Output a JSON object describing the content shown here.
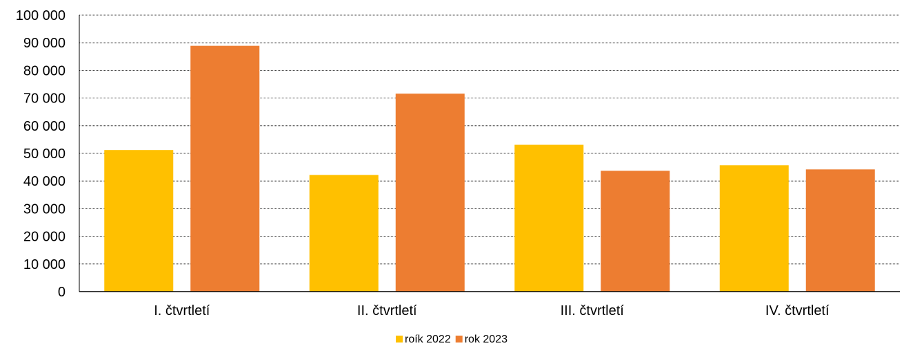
{
  "chart_data": {
    "type": "bar",
    "categories": [
      "I. čtvrtletí",
      "II. čtvrtletí",
      "III. čtvrtletí",
      "IV. čtvrtletí"
    ],
    "series": [
      {
        "name": "roík 2022",
        "color": "#FFC000",
        "values": [
          51200,
          42200,
          53100,
          45700
        ]
      },
      {
        "name": "rok 2023",
        "color": "#ED7D31",
        "values": [
          88900,
          71600,
          43700,
          44200
        ]
      }
    ],
    "yticks": [
      "0",
      "10 000",
      "20 000",
      "30 000",
      "40 000",
      "50 000",
      "60 000",
      "70 000",
      "80 000",
      "90 000",
      "100 000"
    ],
    "ylim": [
      0,
      100000
    ],
    "grid": true,
    "legend_position": "bottom"
  }
}
